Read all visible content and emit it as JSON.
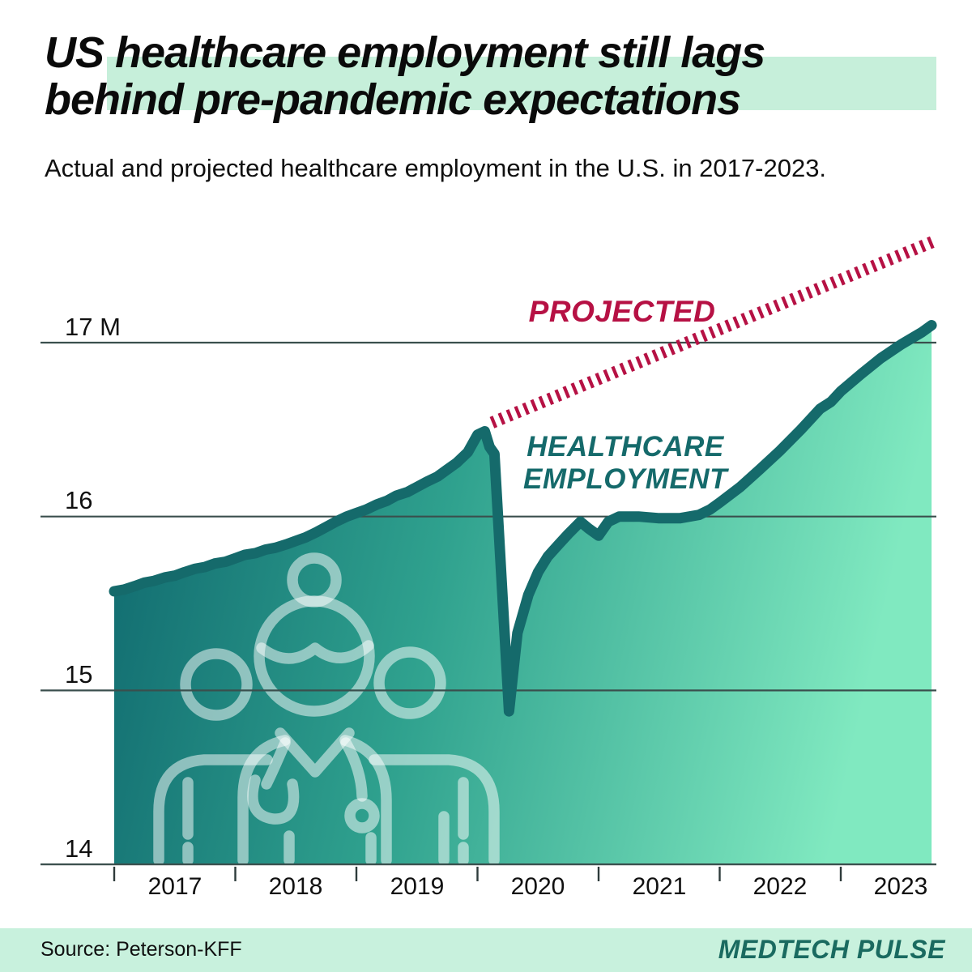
{
  "title": {
    "line1": "US healthcare employment still lags",
    "line2": "behind pre-pandemic expectations"
  },
  "subtitle": "Actual and projected healthcare employment in the U.S. in 2017-2023.",
  "footer": {
    "source": "Source: Peterson-KFF",
    "brand": "MEDTECH PULSE"
  },
  "icons": {
    "watermark": "healthcare-workers-icon"
  },
  "colors": {
    "mint_highlight": "#c6efda",
    "footer_band": "#c8f1dd",
    "crimson": "#b61144",
    "teal_line": "#156a6b",
    "logo_teal": "#1a6a60",
    "fill_left": "#0e666d",
    "fill_mid": "#2fa18e",
    "fill_right": "#80e9c0",
    "gridline": "#3a4f4d",
    "tick": "#2e3b3b",
    "watermark_stroke": "rgba(255,255,255,0.5)"
  },
  "chart_data": {
    "type": "area",
    "title": "Actual and projected healthcare employment in the U.S. in 2017-2023",
    "x_unit": "year",
    "y_unit": "millions of employees",
    "x_range": [
      2017,
      2023.8
    ],
    "y_range": [
      14,
      17.6
    ],
    "grid": true,
    "y_axis": {
      "ticks": [
        17,
        16,
        15,
        14
      ],
      "labels": [
        "17 M",
        "16",
        "15",
        "14"
      ]
    },
    "x_axis": {
      "tick_years": [
        2017,
        2018,
        2019,
        2020,
        2021,
        2022,
        2023
      ],
      "labels": [
        "2017",
        "2018",
        "2019",
        "2020",
        "2021",
        "2022",
        "2023"
      ]
    },
    "labels": {
      "projected": "PROJECTED",
      "employment_line1": "HEALTHCARE",
      "employment_line2": "EMPLOYMENT"
    },
    "series": [
      {
        "name": "HEALTHCARE EMPLOYMENT",
        "style": "area-line",
        "color": "#156a6b",
        "points": [
          [
            2017.0,
            15.57
          ],
          [
            2017.08,
            15.58
          ],
          [
            2017.17,
            15.6
          ],
          [
            2017.25,
            15.62
          ],
          [
            2017.33,
            15.63
          ],
          [
            2017.42,
            15.65
          ],
          [
            2017.5,
            15.66
          ],
          [
            2017.58,
            15.68
          ],
          [
            2017.67,
            15.7
          ],
          [
            2017.75,
            15.71
          ],
          [
            2017.83,
            15.73
          ],
          [
            2017.92,
            15.74
          ],
          [
            2018.0,
            15.76
          ],
          [
            2018.08,
            15.78
          ],
          [
            2018.17,
            15.79
          ],
          [
            2018.25,
            15.81
          ],
          [
            2018.33,
            15.82
          ],
          [
            2018.42,
            15.84
          ],
          [
            2018.5,
            15.86
          ],
          [
            2018.58,
            15.88
          ],
          [
            2018.67,
            15.91
          ],
          [
            2018.75,
            15.94
          ],
          [
            2018.83,
            15.97
          ],
          [
            2018.92,
            16.0
          ],
          [
            2019.0,
            16.02
          ],
          [
            2019.08,
            16.04
          ],
          [
            2019.17,
            16.07
          ],
          [
            2019.25,
            16.09
          ],
          [
            2019.33,
            16.12
          ],
          [
            2019.42,
            16.14
          ],
          [
            2019.5,
            16.17
          ],
          [
            2019.58,
            16.2
          ],
          [
            2019.67,
            16.23
          ],
          [
            2019.75,
            16.27
          ],
          [
            2019.83,
            16.31
          ],
          [
            2019.92,
            16.37
          ],
          [
            2020.0,
            16.47
          ],
          [
            2020.06,
            16.49
          ],
          [
            2020.1,
            16.4
          ],
          [
            2020.14,
            16.36
          ],
          [
            2020.26,
            14.88
          ],
          [
            2020.33,
            15.33
          ],
          [
            2020.42,
            15.55
          ],
          [
            2020.5,
            15.68
          ],
          [
            2020.58,
            15.77
          ],
          [
            2020.67,
            15.84
          ],
          [
            2020.75,
            15.9
          ],
          [
            2020.85,
            15.97
          ],
          [
            2020.92,
            15.93
          ],
          [
            2021.0,
            15.89
          ],
          [
            2021.08,
            15.97
          ],
          [
            2021.17,
            16.0
          ],
          [
            2021.33,
            16.0
          ],
          [
            2021.5,
            15.99
          ],
          [
            2021.67,
            15.99
          ],
          [
            2021.83,
            16.01
          ],
          [
            2021.92,
            16.04
          ],
          [
            2022.0,
            16.08
          ],
          [
            2022.17,
            16.17
          ],
          [
            2022.33,
            16.27
          ],
          [
            2022.5,
            16.38
          ],
          [
            2022.67,
            16.5
          ],
          [
            2022.83,
            16.62
          ],
          [
            2022.92,
            16.66
          ],
          [
            2023.0,
            16.72
          ],
          [
            2023.17,
            16.82
          ],
          [
            2023.33,
            16.91
          ],
          [
            2023.5,
            16.99
          ],
          [
            2023.67,
            17.06
          ],
          [
            2023.75,
            17.1
          ]
        ]
      },
      {
        "name": "PROJECTED",
        "style": "dashed-line",
        "color": "#b61144",
        "points": [
          [
            2020.12,
            16.54
          ],
          [
            2023.76,
            17.58
          ]
        ]
      }
    ],
    "legend_position": "inline-annotations"
  }
}
